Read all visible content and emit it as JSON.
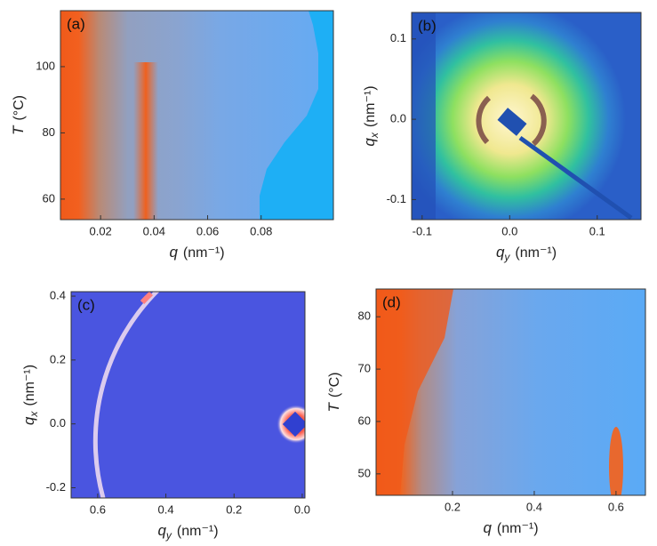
{
  "chart_data": [
    {
      "type": "heatmap",
      "panel_label": "(a)",
      "x_label": {
        "symbol": "q",
        "unit": "(nm⁻¹)"
      },
      "y_label": {
        "symbol": "T",
        "unit": "(°C)"
      },
      "xlim": [
        0.005,
        0.107
      ],
      "ylim": [
        53.8,
        116.9
      ],
      "xticks": [
        0.02,
        0.04,
        0.06,
        0.08
      ],
      "yticks": [
        60,
        80,
        100
      ]
    },
    {
      "type": "image",
      "panel_label": "(b)",
      "x_label": {
        "symbol": "q",
        "subscript": "y",
        "unit": "(nm⁻¹)"
      },
      "y_label": {
        "symbol": "q",
        "subscript": "x",
        "unit": "(nm⁻¹)"
      },
      "xlim": [
        -0.112,
        0.15
      ],
      "ylim": [
        -0.125,
        0.133
      ],
      "xticks": [
        -0.1,
        {
          "value": 0,
          "label": "0.0"
        },
        0.1
      ],
      "yticks": [
        -0.1,
        {
          "value": 0,
          "label": "0.0"
        },
        0.1
      ]
    },
    {
      "type": "image",
      "panel_label": "(c)",
      "x_label": {
        "symbol": "q",
        "subscript": "y",
        "unit": "(nm⁻¹)"
      },
      "y_label": {
        "symbol": "q",
        "subscript": "x",
        "unit": "(nm⁻¹)"
      },
      "xlim": [
        0.678,
        -0.008
      ],
      "ylim": [
        -0.232,
        0.414
      ],
      "xticks": [
        0.6,
        0.4,
        0.2,
        {
          "value": 0,
          "label": "0.0"
        }
      ],
      "yticks": [
        -0.2,
        {
          "value": 0,
          "label": "0.0"
        },
        0.2,
        0.4
      ]
    },
    {
      "type": "heatmap",
      "panel_label": "(d)",
      "x_label": {
        "symbol": "q",
        "unit": "(nm⁻¹)"
      },
      "y_label": {
        "symbol": "T",
        "unit": "(°C)"
      },
      "xlim": [
        0.013,
        0.672
      ],
      "ylim": [
        45.9,
        85.3
      ],
      "xticks": [
        0.2,
        0.4,
        0.6
      ],
      "yticks": [
        50,
        60,
        70,
        80
      ]
    }
  ]
}
